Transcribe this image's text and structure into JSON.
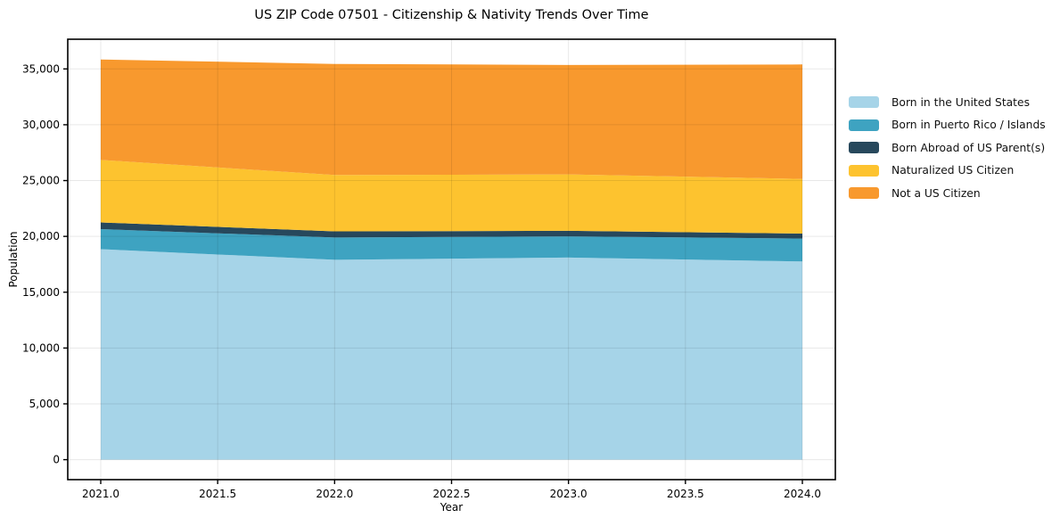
{
  "title": "US ZIP Code 07501 - Citizenship & Nativity Trends Over Time",
  "chart_data": {
    "type": "area",
    "stacked": true,
    "title": "US ZIP Code 07501 - Citizenship & Nativity Trends Over Time",
    "xlabel": "Year",
    "ylabel": "Population",
    "x": [
      2021,
      2022,
      2023,
      2024
    ],
    "series": [
      {
        "name": "Born in the United States",
        "color": "#a6d4e8",
        "values": [
          18850,
          17900,
          18100,
          17750
        ]
      },
      {
        "name": "Born in Puerto Rico / Islands",
        "color": "#3ea3c1",
        "values": [
          1800,
          2000,
          1900,
          2050
        ]
      },
      {
        "name": "Born Abroad of US Parent(s)",
        "color": "#27485c",
        "values": [
          600,
          550,
          500,
          450
        ]
      },
      {
        "name": "Naturalized US Citizen",
        "color": "#fdc32f",
        "values": [
          5600,
          5050,
          5050,
          4900
        ]
      },
      {
        "name": "Not a US Citizen",
        "color": "#f8992e",
        "values": [
          9000,
          9950,
          9800,
          10250
        ]
      }
    ],
    "x_ticks": [
      2021.0,
      2021.5,
      2022.0,
      2022.5,
      2023.0,
      2023.5,
      2024.0
    ],
    "x_tick_labels": [
      "2021.0",
      "2021.5",
      "2022.0",
      "2022.5",
      "2023.0",
      "2023.5",
      "2024.0"
    ],
    "y_ticks": [
      0,
      5000,
      10000,
      15000,
      20000,
      25000,
      30000,
      35000
    ],
    "y_tick_labels": [
      "0",
      "5,000",
      "10,000",
      "15,000",
      "20,000",
      "25,000",
      "30,000",
      "35,000"
    ],
    "xlim": [
      2020.859,
      2024.141
    ],
    "ylim": [
      -1790,
      37660
    ],
    "grid": true,
    "legend_position": "right-outside"
  }
}
